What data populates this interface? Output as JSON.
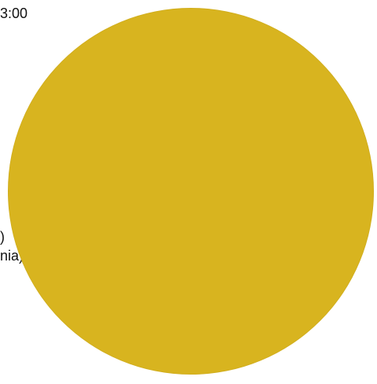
{
  "text_fragments": {
    "top": "3:00",
    "mid1": ")",
    "mid2": "nia)."
  },
  "colors": {
    "disc": "#D8B41F",
    "background": "#FFFFFF"
  }
}
